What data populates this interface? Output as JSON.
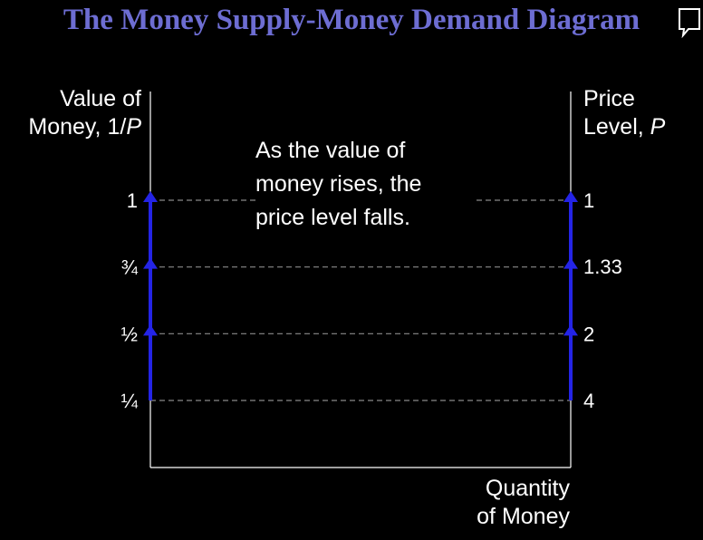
{
  "title": "The Money Supply-Money Demand Diagram",
  "colors": {
    "background": "#000000",
    "title": "#6d6dd2",
    "text": "#ffffff",
    "arrow": "#2424e6",
    "guide": "#8a8a8a",
    "axis": "#ffffff"
  },
  "chart_data": {
    "type": "line",
    "title": "The Money Supply-Money Demand Diagram",
    "left_axis": {
      "label_line1": "Value of",
      "label_line2_prefix": "Money, 1/",
      "label_line2_var": "P",
      "ticks": [
        {
          "label": "1",
          "value": 1
        },
        {
          "label": "¾",
          "value": 0.75
        },
        {
          "label": "½",
          "value": 0.5
        },
        {
          "label": "¼",
          "value": 0.25
        }
      ],
      "range": [
        0,
        1.25
      ]
    },
    "right_axis": {
      "label_line1": "Price",
      "label_line2_prefix": "Level, ",
      "label_line2_var": "P",
      "ticks": [
        {
          "label": "1",
          "value": 1
        },
        {
          "label": "1.33",
          "value": 1.33
        },
        {
          "label": "2",
          "value": 2
        },
        {
          "label": "4",
          "value": 4
        }
      ],
      "scale": "reciprocal"
    },
    "x_axis": {
      "label_line1": "Quantity",
      "label_line2": "of Money"
    },
    "annotation": "As the value of money rises, the price level falls.",
    "arrows": [
      {
        "axis": "left",
        "from": 0.25,
        "to": 1,
        "direction": "up"
      },
      {
        "axis": "right",
        "from": 0.25,
        "to": 1,
        "direction": "up"
      }
    ],
    "grid": "dashed guides at tick levels",
    "legend": "none"
  }
}
